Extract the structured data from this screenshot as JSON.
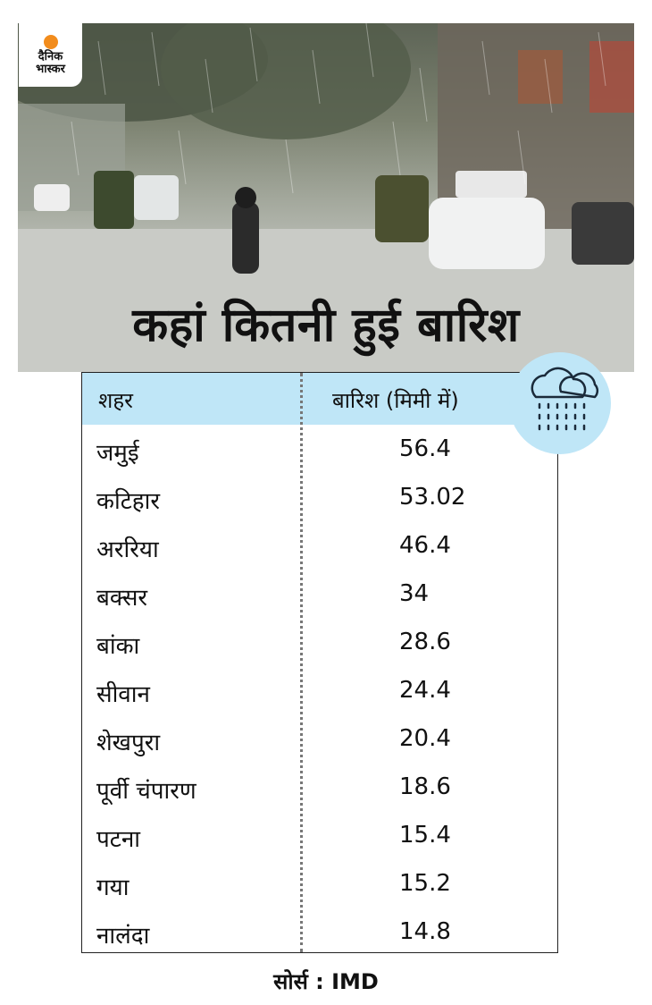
{
  "headline": "कहां कितनी हुई बारिश",
  "logo": {
    "line1": "दैनिक",
    "line2": "भास्कर"
  },
  "table": {
    "headers": {
      "city": "शहर",
      "rain": "बारिश (मिमी में)"
    }
  },
  "source": "सोर्स : IMD",
  "icons": {
    "rain": "rain-cloud-icon",
    "logo": "sun-icon"
  },
  "colors": {
    "header_bg": "#bfe6f7",
    "logo_sun": "#f28c1c"
  },
  "chart_data": {
    "type": "table",
    "columns": [
      "शहर",
      "बारिश (मिमी में)"
    ],
    "rows": [
      {
        "city": "जमुई",
        "value": "56.4"
      },
      {
        "city": "कटिहार",
        "value": "53.02"
      },
      {
        "city": "अररिया",
        "value": "46.4"
      },
      {
        "city": "बक्सर",
        "value": "34"
      },
      {
        "city": "बांका",
        "value": "28.6"
      },
      {
        "city": "सीवान",
        "value": "24.4"
      },
      {
        "city": "शेखपुरा",
        "value": "20.4"
      },
      {
        "city": "पूर्वी चंपारण",
        "value": "18.6"
      },
      {
        "city": "पटना",
        "value": "15.4"
      },
      {
        "city": "गया",
        "value": "15.2"
      },
      {
        "city": "नालंदा",
        "value": "14.8"
      }
    ]
  }
}
